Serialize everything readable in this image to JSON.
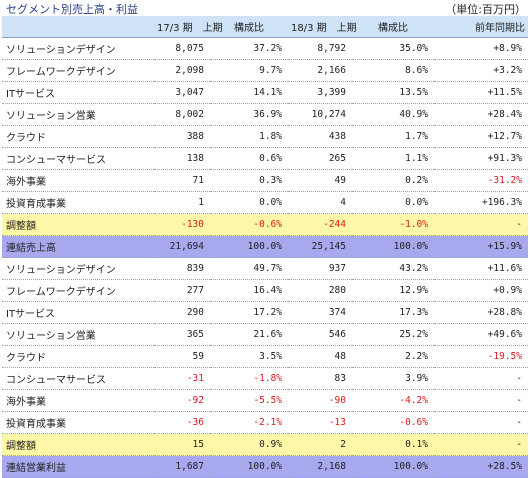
{
  "title": "セグメント別売上高・利益",
  "unit": "（単位:百万円）",
  "headers": [
    "",
    "17/3 期　上期",
    "構成比",
    "18/3 期　上期",
    "構成比",
    "前年同期比"
  ],
  "rows": [
    {
      "type": "normal",
      "cells": [
        "ソリューションデザイン",
        "8,075",
        "37.2%",
        "8,792",
        "35.0%",
        "+8.9%"
      ]
    },
    {
      "type": "normal",
      "cells": [
        "フレームワークデザイン",
        "2,098",
        "9.7%",
        "2,166",
        "8.6%",
        "+3.2%"
      ]
    },
    {
      "type": "normal",
      "cells": [
        "ITサービス",
        "3,047",
        "14.1%",
        "3,399",
        "13.5%",
        "+11.5%"
      ]
    },
    {
      "type": "normal",
      "cells": [
        "ソリューション営業",
        "8,002",
        "36.9%",
        "10,274",
        "40.9%",
        "+28.4%"
      ]
    },
    {
      "type": "normal",
      "cells": [
        "クラウド",
        "388",
        "1.8%",
        "438",
        "1.7%",
        "+12.7%"
      ]
    },
    {
      "type": "normal",
      "cells": [
        "コンシューマサービス",
        "138",
        "0.6%",
        "265",
        "1.1%",
        "+91.3%"
      ]
    },
    {
      "type": "normal",
      "cells": [
        "海外事業",
        "71",
        "0.3%",
        "49",
        "0.2%",
        "-31.2%"
      ]
    },
    {
      "type": "normal",
      "cells": [
        "投資育成事業",
        "1",
        "0.0%",
        "4",
        "0.0%",
        "+196.3%"
      ]
    },
    {
      "type": "adj",
      "cells": [
        "調整額",
        "-130",
        "-0.6%",
        "-244",
        "-1.0%",
        "-"
      ]
    },
    {
      "type": "total",
      "cells": [
        "連結売上高",
        "21,694",
        "100.0%",
        "25,145",
        "100.0%",
        "+15.9%"
      ]
    },
    {
      "type": "normal",
      "cells": [
        "ソリューションデザイン",
        "839",
        "49.7%",
        "937",
        "43.2%",
        "+11.6%"
      ]
    },
    {
      "type": "normal",
      "cells": [
        "フレームワークデザイン",
        "277",
        "16.4%",
        "280",
        "12.9%",
        "+0.9%"
      ]
    },
    {
      "type": "normal",
      "cells": [
        "ITサービス",
        "290",
        "17.2%",
        "374",
        "17.3%",
        "+28.8%"
      ]
    },
    {
      "type": "normal",
      "cells": [
        "ソリューション営業",
        "365",
        "21.6%",
        "546",
        "25.2%",
        "+49.6%"
      ]
    },
    {
      "type": "normal",
      "cells": [
        "クラウド",
        "59",
        "3.5%",
        "48",
        "2.2%",
        "-19.5%"
      ]
    },
    {
      "type": "normal",
      "cells": [
        "コンシューマサービス",
        "-31",
        "-1.8%",
        "83",
        "3.9%",
        "-"
      ]
    },
    {
      "type": "normal",
      "cells": [
        "海外事業",
        "-92",
        "-5.5%",
        "-90",
        "-4.2%",
        "-"
      ]
    },
    {
      "type": "normal",
      "cells": [
        "投資育成事業",
        "-36",
        "-2.1%",
        "-13",
        "-0.6%",
        "-"
      ]
    },
    {
      "type": "adj",
      "cells": [
        "調整額",
        "15",
        "0.9%",
        "2",
        "0.1%",
        "-"
      ]
    },
    {
      "type": "total",
      "cells": [
        "連結営業利益",
        "1,687",
        "100.0%",
        "2,168",
        "100.0%",
        "+28.5%"
      ]
    }
  ]
}
